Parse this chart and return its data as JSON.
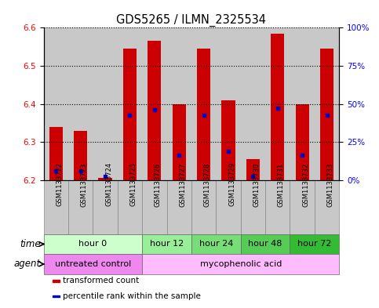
{
  "title": "GDS5265 / ILMN_2325534",
  "samples": [
    "GSM1133722",
    "GSM1133723",
    "GSM1133724",
    "GSM1133725",
    "GSM1133726",
    "GSM1133727",
    "GSM1133728",
    "GSM1133729",
    "GSM1133730",
    "GSM1133731",
    "GSM1133732",
    "GSM1133733"
  ],
  "bar_bottom": 6.2,
  "bar_tops": [
    6.34,
    6.33,
    6.205,
    6.545,
    6.565,
    6.4,
    6.545,
    6.41,
    6.255,
    6.585,
    6.4,
    6.545
  ],
  "percentile_values": [
    6.225,
    6.225,
    6.21,
    6.37,
    6.385,
    6.265,
    6.37,
    6.275,
    6.21,
    6.39,
    6.265,
    6.37
  ],
  "ylim": [
    6.2,
    6.6
  ],
  "yticks_left": [
    6.2,
    6.3,
    6.4,
    6.5,
    6.6
  ],
  "yticks_right": [
    0,
    25,
    50,
    75,
    100
  ],
  "bar_color": "#cc0000",
  "percentile_color": "#0000cc",
  "time_groups": [
    {
      "label": "hour 0",
      "start": 0,
      "end": 4,
      "color": "#ccffcc"
    },
    {
      "label": "hour 12",
      "start": 4,
      "end": 6,
      "color": "#99ee99"
    },
    {
      "label": "hour 24",
      "start": 6,
      "end": 8,
      "color": "#77dd77"
    },
    {
      "label": "hour 48",
      "start": 8,
      "end": 10,
      "color": "#55cc55"
    },
    {
      "label": "hour 72",
      "start": 10,
      "end": 12,
      "color": "#33bb33"
    }
  ],
  "agent_groups": [
    {
      "label": "untreated control",
      "start": 0,
      "end": 4,
      "color": "#ee88ee"
    },
    {
      "label": "mycophenolic acid",
      "start": 4,
      "end": 12,
      "color": "#ffbbff"
    }
  ],
  "legend_items": [
    {
      "label": "transformed count",
      "color": "#cc0000"
    },
    {
      "label": "percentile rank within the sample",
      "color": "#0000cc"
    }
  ],
  "xlabel_time": "time",
  "xlabel_agent": "agent",
  "col_bg": "#c8c8c8",
  "plot_bg": "#ffffff",
  "bar_width": 0.55,
  "title_fontsize": 10.5,
  "tick_fontsize": 7.5,
  "sample_fontsize": 6.0,
  "row_label_fontsize": 8.5,
  "group_label_fontsize": 8.0,
  "legend_fontsize": 7.5
}
